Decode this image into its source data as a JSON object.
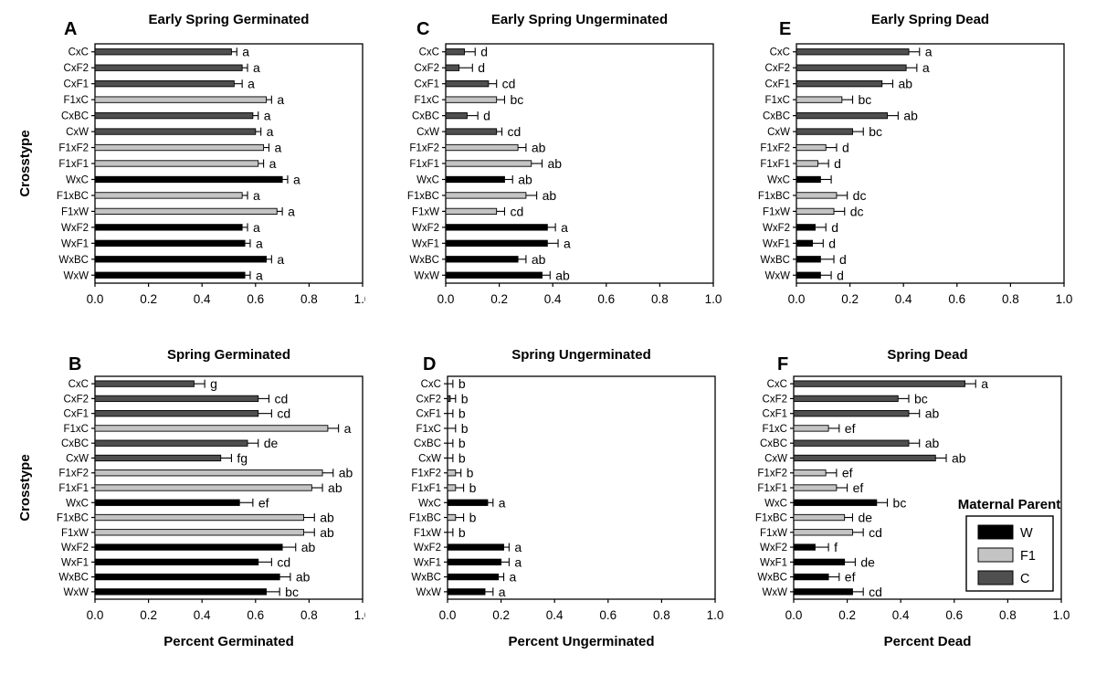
{
  "chart_data": {
    "type": "bar",
    "orientation": "horizontal",
    "grid": "off",
    "xlim": [
      0,
      1
    ],
    "xticks": [
      "0.0",
      "0.2",
      "0.4",
      "0.6",
      "0.8",
      "1.0"
    ],
    "xtick_values": [
      0,
      0.2,
      0.4,
      0.6,
      0.8,
      1.0
    ],
    "ylabel": "Crosstype",
    "categories": [
      "CxC",
      "CxF2",
      "CxF1",
      "F1xC",
      "CxBC",
      "CxW",
      "F1xF2",
      "F1xF1",
      "WxC",
      "F1xBC",
      "F1xW",
      "WxF2",
      "WxF1",
      "WxBC",
      "WxW"
    ],
    "maternal_parent_by_category": [
      "C",
      "C",
      "C",
      "F1",
      "C",
      "C",
      "F1",
      "F1",
      "W",
      "F1",
      "F1",
      "W",
      "W",
      "W",
      "W"
    ],
    "colors": {
      "W": "#000000",
      "F1": "#c4c4c4",
      "C": "#4f4f4f"
    },
    "legend": {
      "title": "Maternal Parent",
      "position": "inside panel F, right side",
      "entries": [
        {
          "key": "W",
          "label": "W"
        },
        {
          "key": "F1",
          "label": "F1"
        },
        {
          "key": "C",
          "label": "C"
        }
      ]
    },
    "panels": [
      {
        "id": "A",
        "title": "Early Spring Germinated",
        "xlabel": "",
        "ylabel": "Crosstype",
        "values": [
          0.51,
          0.55,
          0.52,
          0.64,
          0.59,
          0.6,
          0.63,
          0.61,
          0.7,
          0.55,
          0.68,
          0.55,
          0.56,
          0.64,
          0.56
        ],
        "errors": [
          0.02,
          0.02,
          0.03,
          0.02,
          0.02,
          0.02,
          0.02,
          0.02,
          0.02,
          0.02,
          0.02,
          0.02,
          0.02,
          0.02,
          0.02
        ],
        "letters": [
          "a",
          "a",
          "a",
          "a",
          "a",
          "a",
          "a",
          "a",
          "a",
          "a",
          "a",
          "a",
          "a",
          "a",
          "a"
        ],
        "show_legend": false
      },
      {
        "id": "C",
        "title": "Early Spring Ungerminated",
        "xlabel": "",
        "ylabel": "",
        "values": [
          0.07,
          0.05,
          0.16,
          0.19,
          0.08,
          0.19,
          0.27,
          0.32,
          0.22,
          0.3,
          0.19,
          0.38,
          0.38,
          0.27,
          0.36
        ],
        "errors": [
          0.04,
          0.05,
          0.03,
          0.03,
          0.04,
          0.02,
          0.03,
          0.04,
          0.03,
          0.04,
          0.03,
          0.03,
          0.04,
          0.03,
          0.03
        ],
        "letters": [
          "d",
          "d",
          "cd",
          "bc",
          "d",
          "cd",
          "ab",
          "ab",
          "ab",
          "ab",
          "cd",
          "a",
          "a",
          "ab",
          "ab"
        ],
        "show_legend": false
      },
      {
        "id": "E",
        "title": "Early Spring Dead",
        "xlabel": "",
        "ylabel": "",
        "values": [
          0.42,
          0.41,
          0.32,
          0.17,
          0.34,
          0.21,
          0.11,
          0.08,
          0.09,
          0.15,
          0.14,
          0.07,
          0.06,
          0.09,
          0.09
        ],
        "errors": [
          0.04,
          0.04,
          0.04,
          0.04,
          0.04,
          0.04,
          0.04,
          0.04,
          0.04,
          0.04,
          0.04,
          0.04,
          0.04,
          0.05,
          0.04
        ],
        "letters": [
          "a",
          "a",
          "ab",
          "bc",
          "ab",
          "bc",
          "d",
          "d",
          "",
          "dc",
          "dc",
          "d",
          "d",
          "d",
          "d"
        ],
        "show_legend": false
      },
      {
        "id": "B",
        "title": "Spring Germinated",
        "xlabel": "Percent Germinated",
        "ylabel": "Crosstype",
        "values": [
          0.37,
          0.61,
          0.61,
          0.87,
          0.57,
          0.47,
          0.85,
          0.81,
          0.54,
          0.78,
          0.78,
          0.7,
          0.61,
          0.69,
          0.64
        ],
        "errors": [
          0.04,
          0.04,
          0.05,
          0.04,
          0.04,
          0.04,
          0.04,
          0.04,
          0.05,
          0.04,
          0.04,
          0.05,
          0.05,
          0.04,
          0.05
        ],
        "letters": [
          "g",
          "cd",
          "cd",
          "a",
          "de",
          "fg",
          "ab",
          "ab",
          "ef",
          "ab",
          "ab",
          "ab",
          "cd",
          "ab",
          "bc"
        ],
        "show_legend": false
      },
      {
        "id": "D",
        "title": "Spring Ungerminated",
        "xlabel": "Percent Ungerminated",
        "ylabel": "",
        "values": [
          0.0,
          0.01,
          0.0,
          0.0,
          0.0,
          0.0,
          0.03,
          0.03,
          0.15,
          0.03,
          0.0,
          0.21,
          0.2,
          0.19,
          0.14
        ],
        "errors": [
          0.02,
          0.02,
          0.02,
          0.03,
          0.02,
          0.02,
          0.02,
          0.03,
          0.02,
          0.03,
          0.02,
          0.02,
          0.03,
          0.02,
          0.03
        ],
        "letters": [
          "b",
          "b",
          "b",
          "b",
          "b",
          "b",
          "b",
          "b",
          "a",
          "b",
          "b",
          "a",
          "a",
          "a",
          "a"
        ],
        "show_legend": false
      },
      {
        "id": "F",
        "title": "Spring Dead",
        "xlabel": "Percent Dead",
        "ylabel": "",
        "values": [
          0.64,
          0.39,
          0.43,
          0.13,
          0.43,
          0.53,
          0.12,
          0.16,
          0.31,
          0.19,
          0.22,
          0.08,
          0.19,
          0.13,
          0.22
        ],
        "errors": [
          0.04,
          0.04,
          0.04,
          0.04,
          0.04,
          0.04,
          0.04,
          0.04,
          0.04,
          0.03,
          0.04,
          0.05,
          0.04,
          0.04,
          0.04
        ],
        "letters": [
          "a",
          "bc",
          "ab",
          "ef",
          "ab",
          "ab",
          "ef",
          "ef",
          "bc",
          "de",
          "cd",
          "f",
          "de",
          "ef",
          "cd"
        ],
        "show_legend": true
      }
    ]
  }
}
